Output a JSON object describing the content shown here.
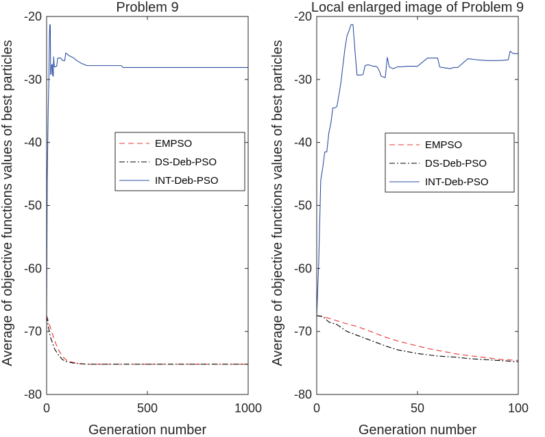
{
  "chart_data": [
    {
      "type": "line",
      "title": "Problem 9",
      "xlabel": "Generation number",
      "ylabel": "Average of objective functions values of best particles",
      "xlim": [
        0,
        1000
      ],
      "ylim": [
        -80,
        -20
      ],
      "xticks": [
        0,
        500,
        1000
      ],
      "xtick_labels": [
        "0",
        "500",
        "1000"
      ],
      "yticks": [
        -80,
        -70,
        -60,
        -50,
        -40,
        -30,
        -20
      ],
      "ytick_labels": [
        "-80",
        "-70",
        "-60",
        "-50",
        "-40",
        "-30",
        "-20"
      ],
      "grid": false,
      "legend_position": "center-right",
      "series": [
        {
          "name": "EMPSO",
          "color": "#e8332f",
          "style": "dashed",
          "x": [
            0,
            10,
            20,
            40,
            60,
            80,
            100,
            130,
            160,
            200,
            300,
            500,
            700,
            1000
          ],
          "y": [
            -67.5,
            -68.5,
            -69.5,
            -71.5,
            -73,
            -74,
            -74.6,
            -74.9,
            -75.1,
            -75.2,
            -75.2,
            -75.2,
            -75.2,
            -75.2
          ]
        },
        {
          "name": "DS-Deb-PSO",
          "color": "#000000",
          "style": "dashdot",
          "x": [
            0,
            10,
            20,
            40,
            60,
            80,
            100,
            130,
            160,
            200,
            300,
            500,
            700,
            1000
          ],
          "y": [
            -67.5,
            -69.5,
            -71,
            -72.8,
            -73.8,
            -74.5,
            -74.8,
            -75,
            -75.1,
            -75.2,
            -75.2,
            -75.2,
            -75.2,
            -75.2
          ]
        },
        {
          "name": "INT-Deb-PSO",
          "color": "#2b4fa3",
          "style": "solid",
          "x": [
            0,
            3,
            5,
            8,
            11,
            14,
            16,
            18,
            20,
            22,
            25,
            28,
            30,
            33,
            35,
            38,
            42,
            46,
            50,
            55,
            60,
            70,
            80,
            90,
            95,
            100,
            110,
            130,
            150,
            170,
            200,
            300,
            370,
            380,
            500,
            700,
            1000
          ],
          "y": [
            -67.5,
            -46,
            -41.5,
            -34.5,
            -30.5,
            -23,
            -21.3,
            -21.3,
            -29.2,
            -29.2,
            -27.7,
            -27.6,
            -29.3,
            -29.5,
            -26.4,
            -28,
            -28,
            -27.9,
            -27.9,
            -26.6,
            -26.6,
            -26.6,
            -27,
            -27,
            -25.8,
            -25.9,
            -26.2,
            -26.5,
            -27,
            -27.4,
            -27.8,
            -27.8,
            -27.8,
            -28.1,
            -28.1,
            -28.1,
            -28.1
          ]
        }
      ]
    },
    {
      "type": "line",
      "title": "Local enlarged image of Problem 9",
      "xlabel": "Generation number",
      "ylabel": "Average of objective functions values of best particles",
      "xlim": [
        0,
        100
      ],
      "ylim": [
        -80,
        -20
      ],
      "xticks": [
        0,
        50,
        100
      ],
      "xtick_labels": [
        "0",
        "50",
        "100"
      ],
      "yticks": [
        -80,
        -70,
        -60,
        -50,
        -40,
        -30,
        -20
      ],
      "ytick_labels": [
        "-80",
        "-70",
        "-60",
        "-50",
        "-40",
        "-30",
        "-20"
      ],
      "grid": false,
      "legend_position": "center-right",
      "series": [
        {
          "name": "EMPSO",
          "color": "#e8332f",
          "style": "dashed",
          "x": [
            0,
            5,
            10,
            15,
            20,
            25,
            30,
            35,
            40,
            45,
            50,
            55,
            60,
            65,
            70,
            75,
            80,
            85,
            90,
            95,
            100
          ],
          "y": [
            -67.5,
            -67.8,
            -68.3,
            -68.8,
            -69.2,
            -69.8,
            -70.4,
            -71,
            -71.5,
            -71.9,
            -72.3,
            -72.7,
            -73,
            -73.3,
            -73.6,
            -73.8,
            -74,
            -74.2,
            -74.4,
            -74.5,
            -74.6
          ]
        },
        {
          "name": "DS-Deb-PSO",
          "color": "#000000",
          "style": "dashdot",
          "x": [
            0,
            3,
            6,
            10,
            15,
            20,
            25,
            30,
            35,
            40,
            45,
            50,
            55,
            60,
            65,
            70,
            75,
            80,
            85,
            90,
            95,
            100
          ],
          "y": [
            -67.5,
            -67.6,
            -68.5,
            -68.9,
            -70,
            -70.6,
            -71.2,
            -71.8,
            -72.4,
            -72.9,
            -73.2,
            -73.5,
            -73.7,
            -73.9,
            -74,
            -74.1,
            -74.3,
            -74.4,
            -74.5,
            -74.6,
            -74.7,
            -74.8
          ]
        },
        {
          "name": "INT-Deb-PSO",
          "color": "#2b4fa3",
          "style": "solid",
          "x": [
            0,
            1,
            2,
            3,
            4,
            5,
            6,
            7,
            8,
            9,
            10,
            11,
            12,
            13,
            14,
            15,
            16,
            17,
            18,
            19,
            20,
            21,
            22,
            23,
            24,
            25,
            26,
            27,
            28,
            29,
            30,
            31,
            32,
            33,
            34,
            35,
            36,
            38,
            40,
            42,
            45,
            48,
            50,
            55,
            60,
            61,
            62,
            63,
            64,
            65,
            66,
            67,
            68,
            70,
            75,
            80,
            85,
            90,
            95,
            96,
            97,
            98,
            100
          ],
          "y": [
            -67.5,
            -59,
            -46,
            -44,
            -41.5,
            -41.5,
            -38.5,
            -37,
            -34.5,
            -34.5,
            -34.3,
            -32.5,
            -30.5,
            -27.8,
            -25.1,
            -23.1,
            -22.3,
            -21.3,
            -21.3,
            -25.5,
            -29.3,
            -29.3,
            -29.3,
            -29.2,
            -27.8,
            -27.7,
            -27.7,
            -27.8,
            -27.9,
            -27.9,
            -28,
            -28.6,
            -29.5,
            -29.6,
            -29.7,
            -26.5,
            -28,
            -28.3,
            -28,
            -28,
            -27.9,
            -27.9,
            -27.9,
            -26.6,
            -26.6,
            -28,
            -28.1,
            -28.1,
            -28.2,
            -28.2,
            -28.3,
            -28.2,
            -28.1,
            -28.1,
            -26.7,
            -26.9,
            -27,
            -27,
            -26.9,
            -25.5,
            -25.8,
            -25.9,
            -25.9
          ]
        }
      ]
    }
  ]
}
